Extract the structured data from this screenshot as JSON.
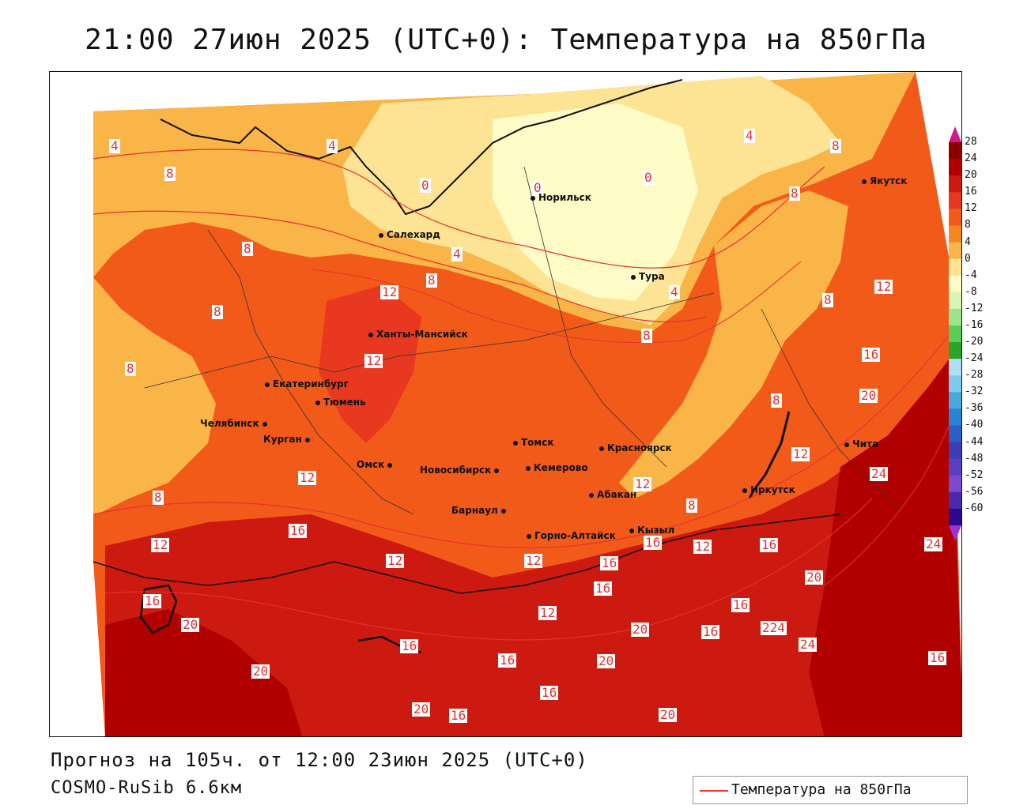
{
  "title": "21:00 27июн 2025 (UTC+0): Температура на 850гПа",
  "forecast_line": "Прогноз на 105ч. от 12:00 23июн 2025 (UTC+0)",
  "model_line": "COSMO-RuSib 6.6км",
  "legend": {
    "label": "Температура на 850гПа",
    "line_color": "#e83030"
  },
  "colorbar": {
    "ticks": [
      "28",
      "24",
      "20",
      "16",
      "12",
      "8",
      "4",
      "0",
      "-4",
      "-8",
      "-12",
      "-16",
      "-20",
      "-24",
      "-28",
      "-32",
      "-36",
      "-40",
      "-44",
      "-48",
      "-52",
      "-56",
      "-60"
    ],
    "colors": [
      "#8b0000",
      "#b00000",
      "#cc1a10",
      "#e83820",
      "#f25a1a",
      "#f7861f",
      "#fab548",
      "#fde495",
      "#fdfbc6",
      "#d7f5b5",
      "#9de58c",
      "#5bcc55",
      "#2aa52a",
      "#aee0f5",
      "#7ccbec",
      "#4aa8e0",
      "#2a82d2",
      "#2b5fc4",
      "#3a3fb6",
      "#5a3fbe",
      "#7a4bcc",
      "#4a2aa8",
      "#2a0a8a"
    ],
    "top_arrow_color": "#d01a8a",
    "bottom_arrow_color": "#a030d0"
  },
  "cities": [
    {
      "name": "Салехард"
    },
    {
      "name": "Норильск"
    },
    {
      "name": "Якутск"
    },
    {
      "name": "Тура"
    },
    {
      "name": "Ханты-Мансийск"
    },
    {
      "name": "Екатеринбург"
    },
    {
      "name": "Тюмень"
    },
    {
      "name": "Челябинск"
    },
    {
      "name": "Курган"
    },
    {
      "name": "Омск"
    },
    {
      "name": "Новосибирск"
    },
    {
      "name": "Томск"
    },
    {
      "name": "Кемерово"
    },
    {
      "name": "Красноярск"
    },
    {
      "name": "Абакан"
    },
    {
      "name": "Барнаул"
    },
    {
      "name": "Горно-Алтайск"
    },
    {
      "name": "Кызыл"
    },
    {
      "name": "Иркутск"
    },
    {
      "name": "Чита"
    }
  ],
  "contour_labels": [
    "4",
    "4",
    "8",
    "4",
    "0",
    "0",
    "0",
    "4",
    "8",
    "8",
    "8",
    "8",
    "12",
    "8",
    "12",
    "8",
    "8",
    "4",
    "8",
    "12",
    "16",
    "20",
    "8",
    "12",
    "12",
    "24",
    "8",
    "12",
    "8",
    "12",
    "16",
    "12",
    "16",
    "12",
    "12",
    "16",
    "24",
    "16",
    "16",
    "20",
    "20",
    "12",
    "16",
    "16",
    "20",
    "20",
    "224",
    "24",
    "16",
    "16",
    "20",
    "16",
    "20",
    "16",
    "16",
    "20",
    "16"
  ]
}
